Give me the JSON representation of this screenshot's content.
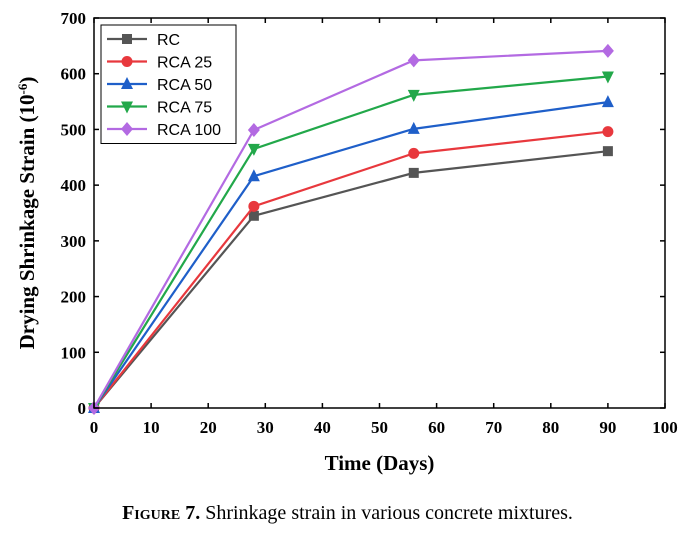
{
  "caption": {
    "label": "Figure 7.",
    "text": "Shrinkage strain in various concrete mixtures."
  },
  "chart_data": {
    "type": "line",
    "title": "",
    "xlabel": "Time (Days)",
    "ylabel_main": "Drying Shrinkage Strain (10",
    "ylabel_exp": "-6",
    "ylabel_close": ")",
    "xlim": [
      0,
      100
    ],
    "ylim": [
      0,
      700
    ],
    "xticks": [
      0,
      10,
      20,
      30,
      40,
      50,
      60,
      70,
      80,
      90,
      100
    ],
    "yticks": [
      0,
      100,
      200,
      300,
      400,
      500,
      600,
      700
    ],
    "legend_position": "top-left",
    "grid": false,
    "x": [
      0,
      28,
      56,
      90
    ],
    "series": [
      {
        "name": "RC",
        "values": [
          0,
          345,
          422,
          461
        ],
        "color": "#555555",
        "marker": "square"
      },
      {
        "name": "RCA 25",
        "values": [
          0,
          362,
          457,
          496
        ],
        "color": "#e8383d",
        "marker": "circle"
      },
      {
        "name": "RCA 50",
        "values": [
          0,
          416,
          501,
          549
        ],
        "color": "#1f5fc9",
        "marker": "triangle-up"
      },
      {
        "name": "RCA 75",
        "values": [
          0,
          465,
          562,
          595
        ],
        "color": "#22a84a",
        "marker": "triangle-down"
      },
      {
        "name": "RCA 100",
        "values": [
          0,
          499,
          624,
          641
        ],
        "color": "#b36ae2",
        "marker": "diamond"
      }
    ]
  }
}
